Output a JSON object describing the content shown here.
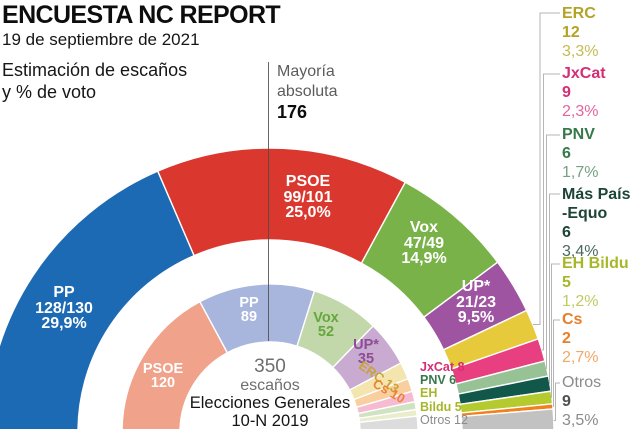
{
  "header": {
    "title": "ENCUESTA NC REPORT",
    "date": "19 de septiembre de 2021",
    "subtitle_line1": "Estimación de escaños",
    "subtitle_line2": "y % de voto"
  },
  "majority": {
    "label_line1": "Mayoría",
    "label_line2": "absoluta",
    "value": "176"
  },
  "center": {
    "total": "350",
    "total_unit": "escaños",
    "election_line1": "Elecciones Generales",
    "election_line2": "10-N 2019"
  },
  "chart_data": {
    "type": "half_donut",
    "total_seats": 350,
    "layout": {
      "start_angle_deg": 180,
      "sweep_deg": 180,
      "legend_position": "right"
    },
    "outer_ring": {
      "description": "Estimación de escaños y % de voto (encuesta NC Report)",
      "segments": [
        {
          "id": "pp",
          "party": "PP",
          "seats": 129,
          "seats_label": "128/130",
          "pct": "29,9%",
          "color": "#1d6ab4"
        },
        {
          "id": "psoe",
          "party": "PSOE",
          "seats": 100,
          "seats_label": "99/101",
          "pct": "25,0%",
          "color": "#da382e"
        },
        {
          "id": "vox",
          "party": "Vox",
          "seats": 48,
          "seats_label": "47/49",
          "pct": "14,9%",
          "color": "#7ab24a"
        },
        {
          "id": "up",
          "party": "UP*",
          "seats": 22,
          "seats_label": "21/23",
          "pct": "9,5%",
          "color": "#9e54a0"
        },
        {
          "id": "erc",
          "party": "ERC",
          "seats": 12,
          "seats_label": "12",
          "pct": "3,3%",
          "color": "#e7ca3c"
        },
        {
          "id": "jxcat",
          "party": "JxCat",
          "seats": 9,
          "seats_label": "9",
          "pct": "2,3%",
          "color": "#e83f80"
        },
        {
          "id": "pnv",
          "party": "PNV",
          "seats": 6,
          "seats_label": "6",
          "pct": "1,7%",
          "color": "#97c295"
        },
        {
          "id": "maspais",
          "party": "Más País -Equo",
          "seats": 6,
          "seats_label": "6",
          "pct": "3,4%",
          "color": "#12584a"
        },
        {
          "id": "ehbildu",
          "party": "EH Bildu",
          "seats": 5,
          "seats_label": "5",
          "pct": "1,2%",
          "color": "#b5ca2f"
        },
        {
          "id": "cs",
          "party": "Cs",
          "seats": 2,
          "seats_label": "2",
          "pct": "2,7%",
          "color": "#f0811f"
        },
        {
          "id": "otros",
          "party": "Otros",
          "seats": 9,
          "seats_label": "9",
          "pct": "3,5%",
          "color": "#c2c2c2"
        }
      ]
    },
    "inner_ring": {
      "description": "Elecciones Generales 10-N 2019",
      "segments": [
        {
          "id": "psoe",
          "party": "PSOE",
          "seats": 120,
          "color": "#f0a28a",
          "label_color": "#ffffff"
        },
        {
          "id": "pp",
          "party": "PP",
          "seats": 89,
          "color": "#a8b6dd",
          "label_color": "#ffffff"
        },
        {
          "id": "vox",
          "party": "Vox",
          "seats": 52,
          "color": "#c2d8ab",
          "label_color": "#64a73e"
        },
        {
          "id": "up",
          "party": "UP*",
          "seats": 35,
          "color": "#c9abd1",
          "label_color": "#8c4d92"
        },
        {
          "id": "erc",
          "party": "ERC",
          "seats": 13,
          "color": "#f3e5ad",
          "label_color": "#c7a434"
        },
        {
          "id": "cs",
          "party": "Cs",
          "seats": 10,
          "color": "#f9cf9f",
          "label_color": "#ee8132"
        },
        {
          "id": "jxcat",
          "party": "JxCat",
          "seats": 8,
          "color": "#f6bad1",
          "label_color": "#d62e74"
        },
        {
          "id": "pnv",
          "party": "PNV",
          "seats": 6,
          "color": "#cfe2c2",
          "label_color": "#37784b"
        },
        {
          "id": "ehbildu",
          "party": "EH Bildu",
          "seats": 5,
          "color": "#e9edcb",
          "label_color": "#a7b729"
        },
        {
          "id": "otros",
          "party": "Otros",
          "seats": 12,
          "color": "#dcdcdc",
          "label_color": "#8b8b8b"
        }
      ],
      "side_labels": [
        {
          "text": "JxCat 8",
          "color": "#d62e74",
          "bold": true
        },
        {
          "text": "PNV 6",
          "color": "#37784b",
          "bold": true
        },
        {
          "text": "EH",
          "color": "#a7b729",
          "bold": true
        },
        {
          "text": "Bildu 5",
          "color": "#a7b729",
          "bold": true
        },
        {
          "text": "Otros 12",
          "color": "#8b8b8b",
          "bold": false
        }
      ]
    }
  },
  "legend": {
    "entries": [
      {
        "id": "erc",
        "name_lines": [
          "ERC"
        ],
        "seats": "12",
        "pct": "3,3%",
        "color": "#b4a325",
        "pct_color": "#c6ba55"
      },
      {
        "id": "jxcat",
        "name_lines": [
          "JxCat"
        ],
        "seats": "9",
        "pct": "2,3%",
        "color": "#d62e74",
        "pct_color": "#e4659e"
      },
      {
        "id": "pnv",
        "name_lines": [
          "PNV"
        ],
        "seats": "6",
        "pct": "1,7%",
        "color": "#37784b",
        "pct_color": "#74a184"
      },
      {
        "id": "maspais",
        "name_lines": [
          "Más País",
          "-Equo"
        ],
        "seats": "6",
        "pct": "3,4%",
        "color": "#1c4437",
        "pct_color": "#49695e"
      },
      {
        "id": "ehbildu",
        "name_lines": [
          "EH Bildu"
        ],
        "seats": "5",
        "pct": "1,2%",
        "color": "#a7b729",
        "pct_color": "#c0ca61"
      },
      {
        "id": "cs",
        "name_lines": [
          "Cs"
        ],
        "seats": "2",
        "pct": "2,7%",
        "color": "#e97e28",
        "pct_color": "#f2a767"
      },
      {
        "id": "otros",
        "name_lines": [
          "Otros"
        ],
        "seats": "9",
        "pct": "3,5%",
        "color": "#8b8b8b",
        "seats_color": "#4f4f4f",
        "pct_color": "#8b8b8b",
        "name_weight": "normal"
      }
    ]
  }
}
